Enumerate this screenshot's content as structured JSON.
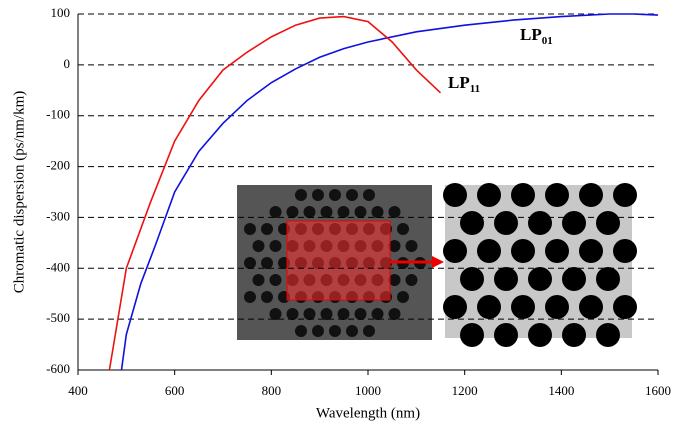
{
  "chart_data": {
    "type": "line",
    "xlabel": "Wavelength (nm)",
    "ylabel": "Chromatic dispersion (ps/nm/km)",
    "xlim": [
      400,
      1600
    ],
    "xticks": [
      400,
      600,
      800,
      1000,
      1200,
      1400,
      1600
    ],
    "ylim": [
      -600,
      100
    ],
    "yticks": [
      -600,
      -500,
      -400,
      -300,
      -200,
      -100,
      0,
      100
    ],
    "grid": true,
    "series": [
      {
        "name": "LP01",
        "color": "#1010e0",
        "x": [
          490,
          500,
          530,
          560,
          600,
          650,
          700,
          750,
          800,
          850,
          900,
          950,
          1000,
          1100,
          1200,
          1300,
          1400,
          1500,
          1550,
          1600
        ],
        "values": [
          -600,
          -530,
          -430,
          -355,
          -250,
          -170,
          -115,
          -70,
          -35,
          -8,
          15,
          32,
          45,
          65,
          78,
          88,
          95,
          100,
          100,
          98
        ]
      },
      {
        "name": "LP11",
        "color": "#ee1111",
        "x": [
          465,
          500,
          550,
          600,
          650,
          700,
          750,
          800,
          850,
          900,
          950,
          1000,
          1050,
          1100,
          1150
        ],
        "values": [
          -600,
          -400,
          -270,
          -150,
          -70,
          -10,
          25,
          55,
          78,
          92,
          95,
          85,
          45,
          -10,
          -55
        ]
      }
    ]
  }
}
